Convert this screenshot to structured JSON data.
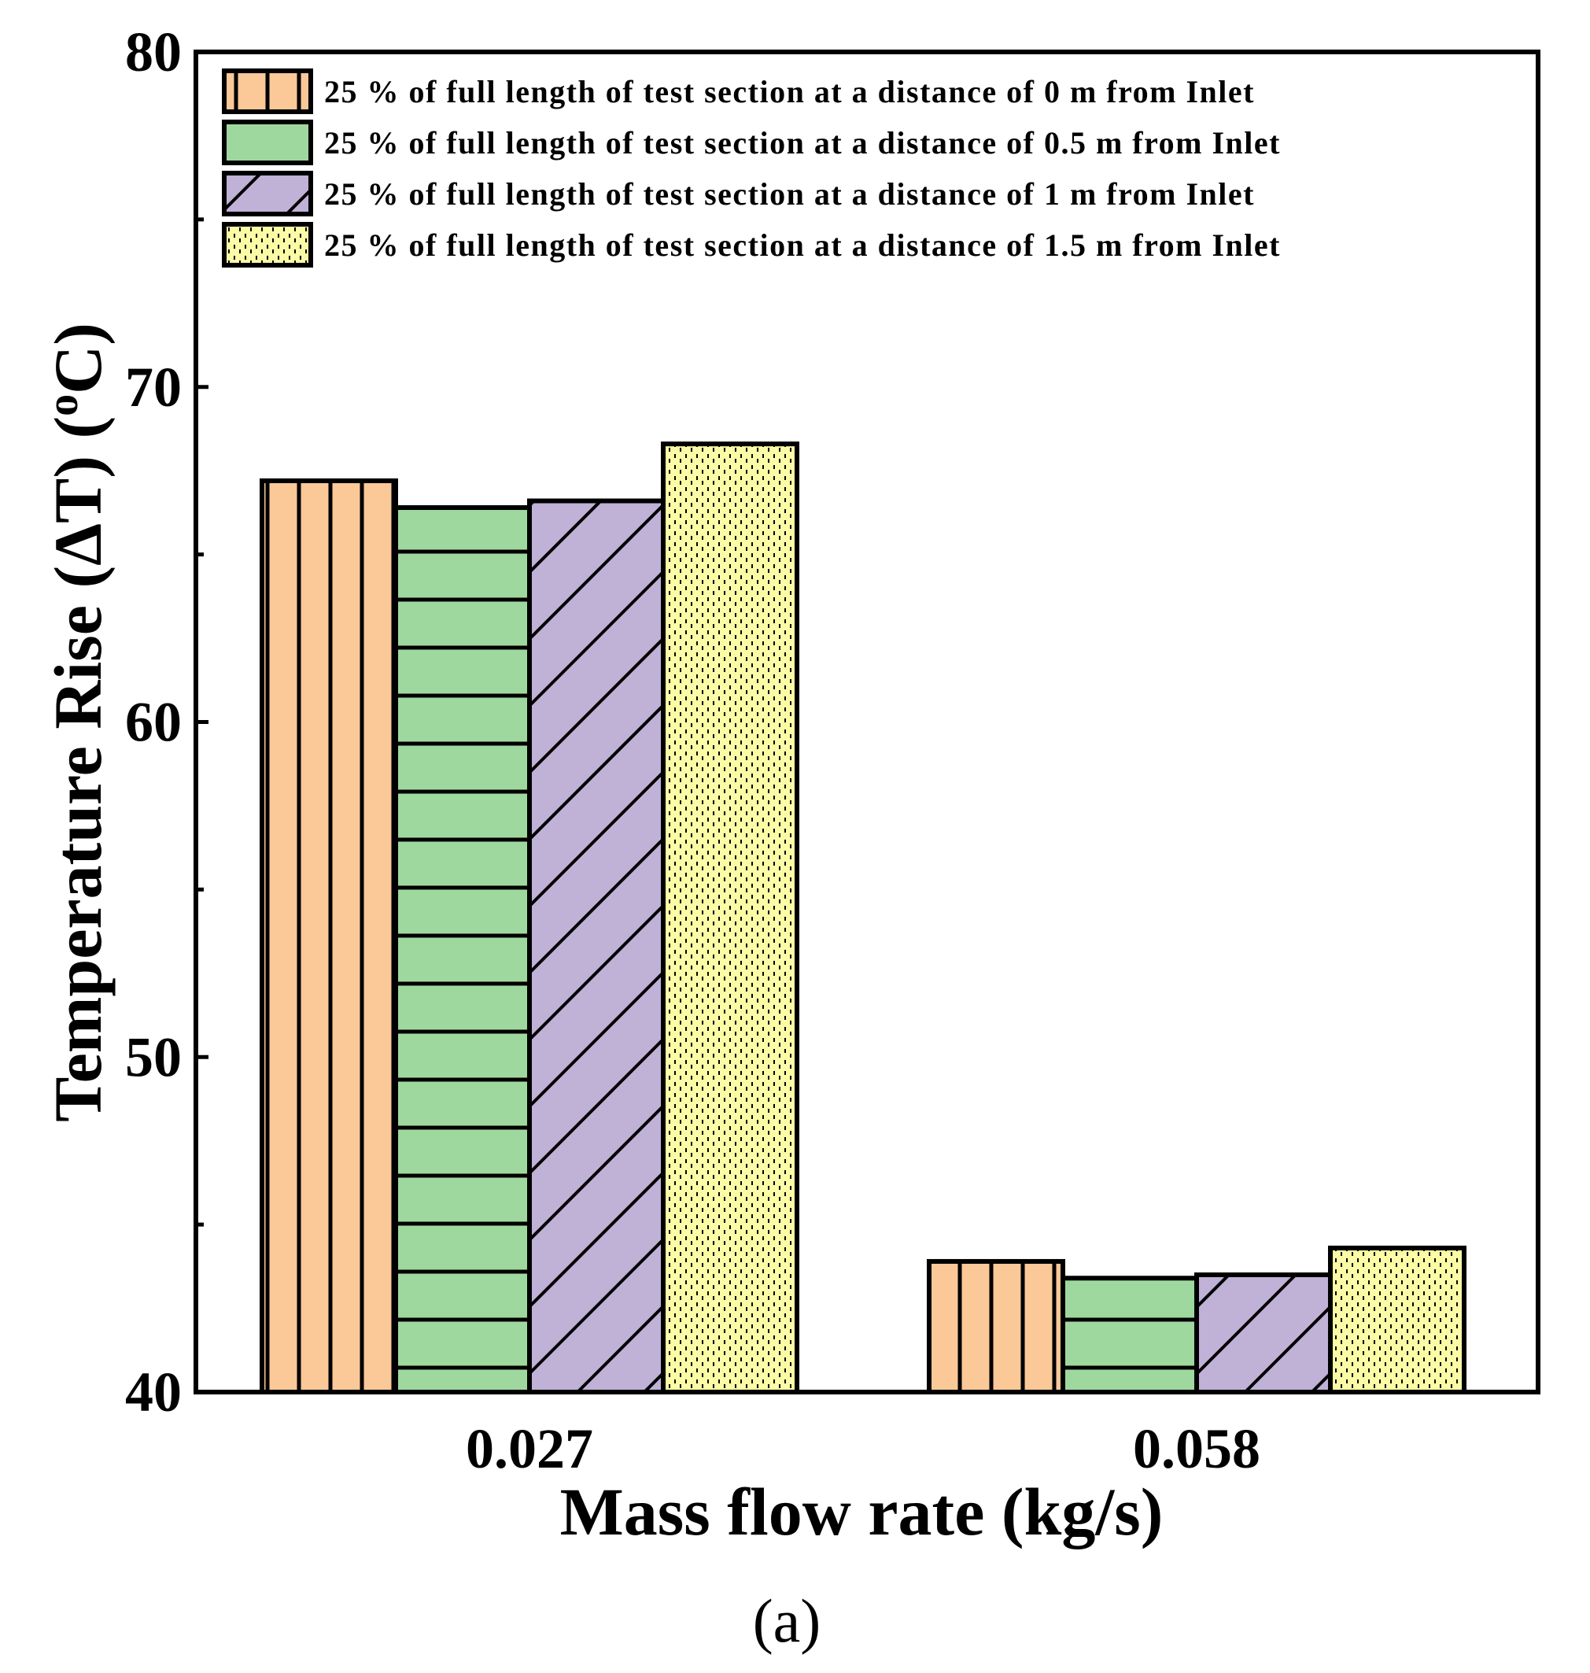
{
  "chart_data": {
    "type": "bar",
    "title": "",
    "xlabel": "Mass flow rate (kg/s)",
    "ylabel_main": "Temperature Rise (ΔT) (",
    "ylabel_sup": "o",
    "ylabel_end": "C)",
    "categories": [
      "0.027",
      "0.058"
    ],
    "ylim": [
      40,
      80
    ],
    "yticks": [
      "40",
      "50",
      "60",
      "70",
      "80"
    ],
    "grid": false,
    "legend_position": "top-left",
    "series": [
      {
        "name": "25 % of full length of test section at a distance of 0 m from Inlet",
        "values": [
          67.2,
          43.9
        ],
        "color": "#FBC898",
        "pattern": "vertical-lines"
      },
      {
        "name": "25 % of full length of test section at a distance of 0.5 m from Inlet",
        "values": [
          66.4,
          43.4
        ],
        "color": "#9FD89E",
        "pattern": "horizontal-lines"
      },
      {
        "name": "25 % of full length of test section at a distance of 1 m from Inlet",
        "values": [
          66.6,
          43.5
        ],
        "color": "#C0B1D7",
        "pattern": "diagonal-lines"
      },
      {
        "name": "25 % of full length of test section at a distance of 1.5 m from Inlet",
        "values": [
          68.3,
          44.3
        ],
        "color": "#FCFBA6",
        "pattern": "dots"
      }
    ]
  },
  "caption": "(a)"
}
